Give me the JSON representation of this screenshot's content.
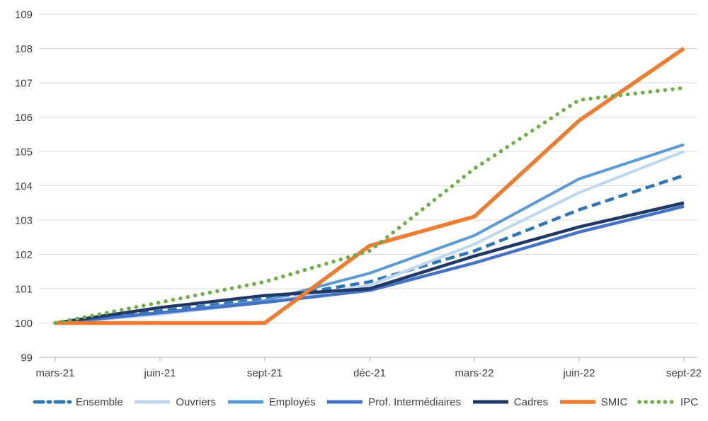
{
  "chart_data": {
    "type": "line",
    "title": "",
    "xlabel": "",
    "ylabel": "",
    "categories": [
      "mars-21",
      "juin-21",
      "sept-21",
      "déc-21",
      "mars-22",
      "juin-22",
      "sept-22"
    ],
    "series": [
      {
        "name": "Ensemble",
        "color": "#2E75B6",
        "style": "dashed",
        "width": 4.5,
        "values": [
          100,
          100.35,
          100.7,
          101.2,
          102.1,
          103.3,
          104.3
        ]
      },
      {
        "name": "Ouvriers",
        "color": "#BDD7EE",
        "style": "solid",
        "width": 4,
        "values": [
          100,
          100.25,
          100.6,
          101.1,
          102.3,
          103.8,
          105.0
        ]
      },
      {
        "name": "Employés",
        "color": "#5B9BD5",
        "style": "solid",
        "width": 4,
        "values": [
          100,
          100.3,
          100.65,
          101.45,
          102.55,
          104.2,
          105.2
        ]
      },
      {
        "name": "Prof. Intermédiaires",
        "color": "#4472C4",
        "style": "solid",
        "width": 4.5,
        "values": [
          100,
          100.3,
          100.6,
          100.95,
          101.75,
          102.65,
          103.4
        ]
      },
      {
        "name": "Cadres",
        "color": "#1F3864",
        "style": "solid",
        "width": 4.5,
        "values": [
          100,
          100.45,
          100.8,
          101.0,
          101.95,
          102.8,
          103.5
        ]
      },
      {
        "name": "SMIC",
        "color": "#ED7D31",
        "style": "solid",
        "width": 5.5,
        "values": [
          100,
          100.0,
          100.0,
          102.25,
          103.1,
          105.9,
          108.0
        ]
      },
      {
        "name": "IPC",
        "color": "#70AD47",
        "style": "dotted",
        "width": 5.5,
        "values": [
          100,
          100.6,
          101.2,
          102.1,
          104.5,
          106.5,
          106.85
        ]
      }
    ],
    "ylim": [
      99,
      109
    ],
    "ytick_step": 1,
    "ytick_labels": [
      "99",
      "100",
      "101",
      "102",
      "103",
      "104",
      "105",
      "106",
      "107",
      "108",
      "109"
    ],
    "grid": true,
    "legend_position": "bottom",
    "colors": {
      "grid": "#D9D9D9",
      "axis": "#BFBFBF",
      "labels": "#404040",
      "background": "#FFFFFF"
    }
  }
}
